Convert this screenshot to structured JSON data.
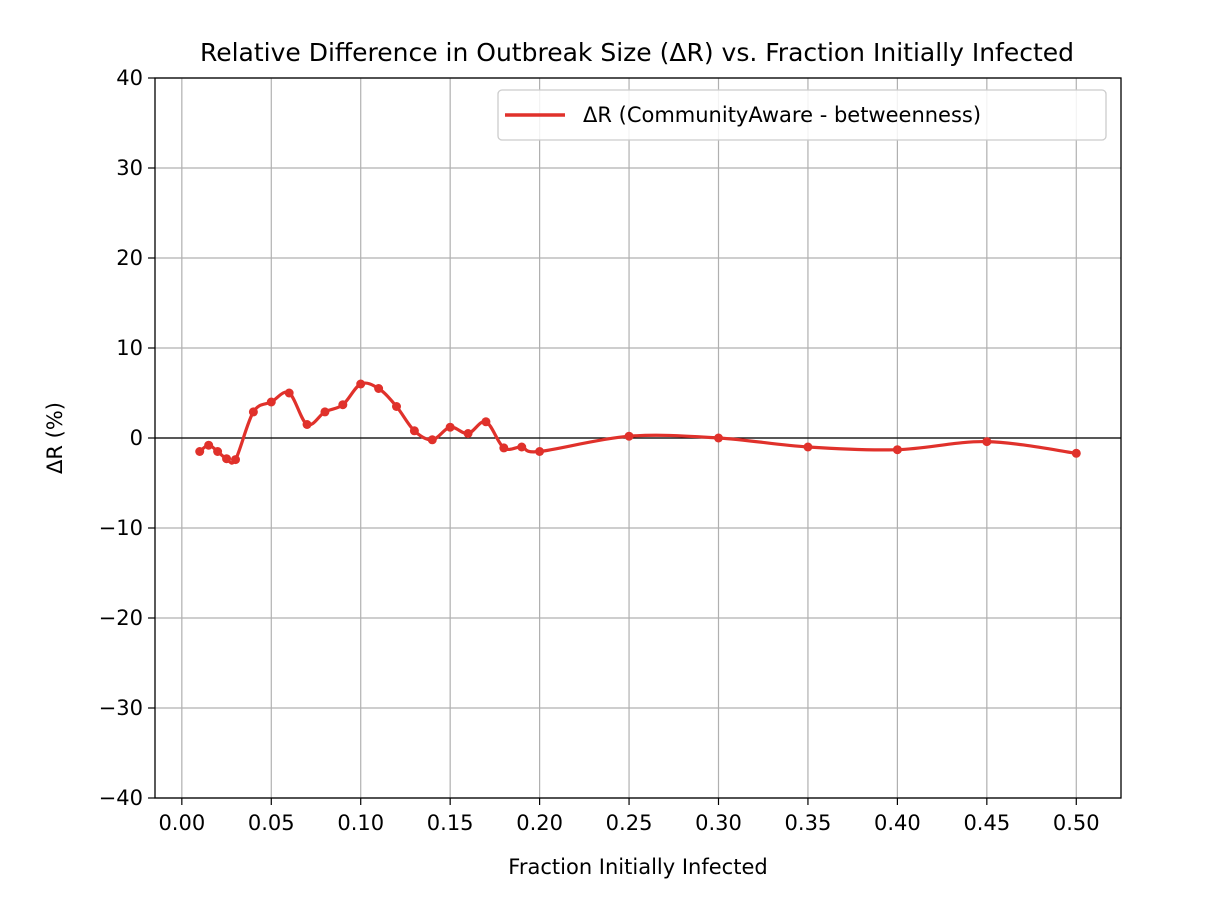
{
  "chart_data": {
    "type": "line",
    "title": "Relative Difference in Outbreak Size (ΔR) vs. Fraction Initially Infected",
    "xlabel": "Fraction Initially Infected",
    "ylabel": "ΔR (%)",
    "xlim": [
      -0.015,
      0.525
    ],
    "ylim": [
      -40,
      40
    ],
    "x_ticks": [
      0.0,
      0.05,
      0.1,
      0.15,
      0.2,
      0.25,
      0.3,
      0.35,
      0.4,
      0.45,
      0.5
    ],
    "x_tick_labels": [
      "0.00",
      "0.05",
      "0.10",
      "0.15",
      "0.20",
      "0.25",
      "0.30",
      "0.35",
      "0.40",
      "0.45",
      "0.50"
    ],
    "y_ticks": [
      -40,
      -30,
      -20,
      -10,
      0,
      10,
      20,
      30,
      40
    ],
    "y_tick_labels": [
      "−40",
      "−30",
      "−20",
      "−10",
      "0",
      "10",
      "20",
      "30",
      "40"
    ],
    "grid": true,
    "zero_line": true,
    "legend_position": "top-right",
    "series": [
      {
        "name": "ΔR (CommunityAware - betweenness)",
        "color": "#e0312b",
        "x": [
          0.01,
          0.015,
          0.02,
          0.025,
          0.03,
          0.04,
          0.05,
          0.06,
          0.07,
          0.08,
          0.09,
          0.1,
          0.11,
          0.12,
          0.13,
          0.14,
          0.15,
          0.16,
          0.17,
          0.18,
          0.19,
          0.2,
          0.25,
          0.3,
          0.35,
          0.4,
          0.45,
          0.5
        ],
        "y": [
          -1.5,
          -0.8,
          -1.5,
          -2.3,
          -2.4,
          2.9,
          4.0,
          5.0,
          1.5,
          2.9,
          3.7,
          6.0,
          5.5,
          3.5,
          0.8,
          -0.2,
          1.2,
          0.5,
          1.8,
          -1.1,
          -1.0,
          -1.5,
          0.2,
          0.0,
          -1.0,
          -1.3,
          -0.4,
          -1.7
        ]
      }
    ]
  }
}
